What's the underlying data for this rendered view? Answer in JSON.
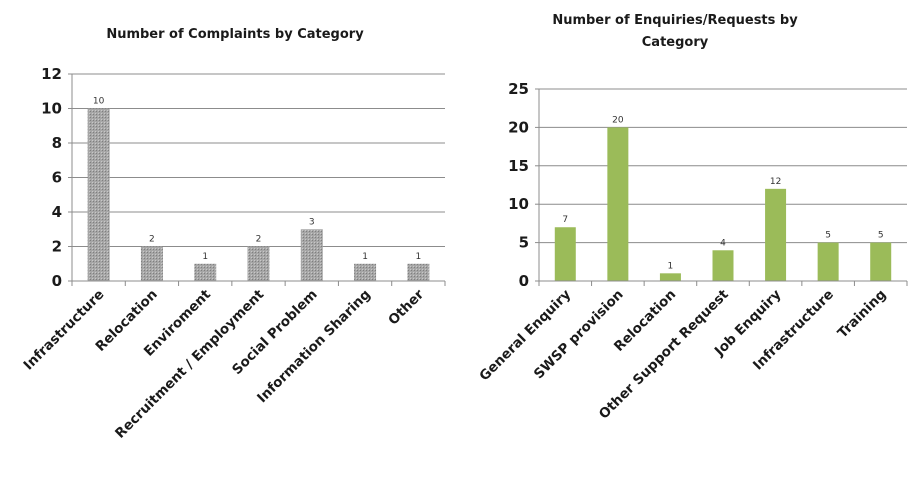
{
  "chart_data": [
    {
      "type": "bar",
      "title": "Number of Complaints  by Category",
      "categories": [
        "Infrastructure",
        "Relocation",
        "Enviroment",
        "Recruitment / Employment",
        "Social Problem",
        "Information Sharing",
        "Other"
      ],
      "values": [
        10,
        2,
        1,
        2,
        3,
        1,
        1
      ],
      "data_labels": [
        "10",
        "2",
        "1",
        "2",
        "3",
        "1",
        "1"
      ],
      "ylim": [
        0,
        12
      ],
      "yticks": [
        0,
        2,
        4,
        6,
        8,
        10,
        12
      ],
      "grid": true,
      "xlabel": "",
      "ylabel": "",
      "color": "#a6a6a6"
    },
    {
      "type": "bar",
      "title": "Number of Enquiries/Requests  by Category",
      "title_lines": [
        "Number of Enquiries/Requests  by",
        "Category"
      ],
      "categories": [
        "General Enquiry",
        "SWSP provision",
        "Relocation",
        "Other Support Request",
        "Job Enquiry",
        "Infrastructure",
        "Training"
      ],
      "values": [
        7,
        20,
        1,
        4,
        12,
        5,
        5
      ],
      "data_labels": [
        "7",
        "20",
        "1",
        "4",
        "12",
        "5",
        "5"
      ],
      "ylim": [
        0,
        25
      ],
      "yticks": [
        0,
        5,
        10,
        15,
        20,
        25
      ],
      "grid": true,
      "xlabel": "",
      "ylabel": "",
      "color": "#9bbb59"
    }
  ]
}
